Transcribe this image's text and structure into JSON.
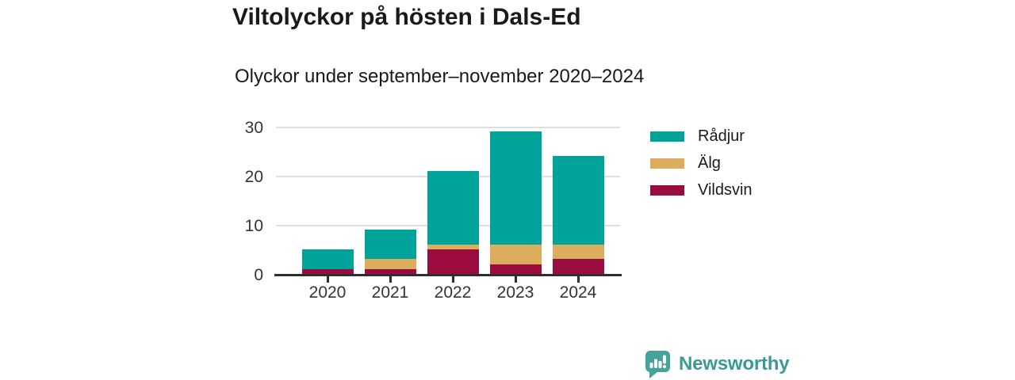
{
  "title": "Viltolyckor på hösten i Dals-Ed",
  "subtitle": "Olyckor under september–november 2020–2024",
  "chart_data": {
    "type": "bar",
    "stacked": true,
    "title": "Viltolyckor på hösten i Dals-Ed",
    "subtitle": "Olyckor under september–november 2020–2024",
    "categories": [
      "2020",
      "2021",
      "2022",
      "2023",
      "2024"
    ],
    "series": [
      {
        "name": "Rådjur",
        "color": "#00A39A",
        "values": [
          4,
          6,
          15,
          23,
          18
        ]
      },
      {
        "name": "Älg",
        "color": "#DBAD5C",
        "values": [
          0,
          2,
          1,
          4,
          3
        ]
      },
      {
        "name": "Vildsvin",
        "color": "#9A0C3F",
        "values": [
          1,
          1,
          5,
          2,
          3
        ]
      }
    ],
    "stack_order_bottom_to_top": [
      "Vildsvin",
      "Älg",
      "Rådjur"
    ],
    "totals": [
      5,
      9,
      21,
      29,
      24
    ],
    "xlabel": "",
    "ylabel": "",
    "ylim": [
      0,
      30
    ],
    "yticks": [
      0,
      10,
      20,
      30
    ],
    "grid": "horizontal",
    "legend_position": "right"
  },
  "colors": {
    "axis": "#2E2E2E",
    "gridline": "#DEDEDE",
    "title_text": "#1A1A1A",
    "tick_label": "#333333"
  },
  "branding": {
    "logo_text": "Newsworthy",
    "logo_text_color": "#3A9A92",
    "logo_icon": "bar-chart-speech-bubble-icon",
    "logo_icon_color": "#46A29A"
  }
}
